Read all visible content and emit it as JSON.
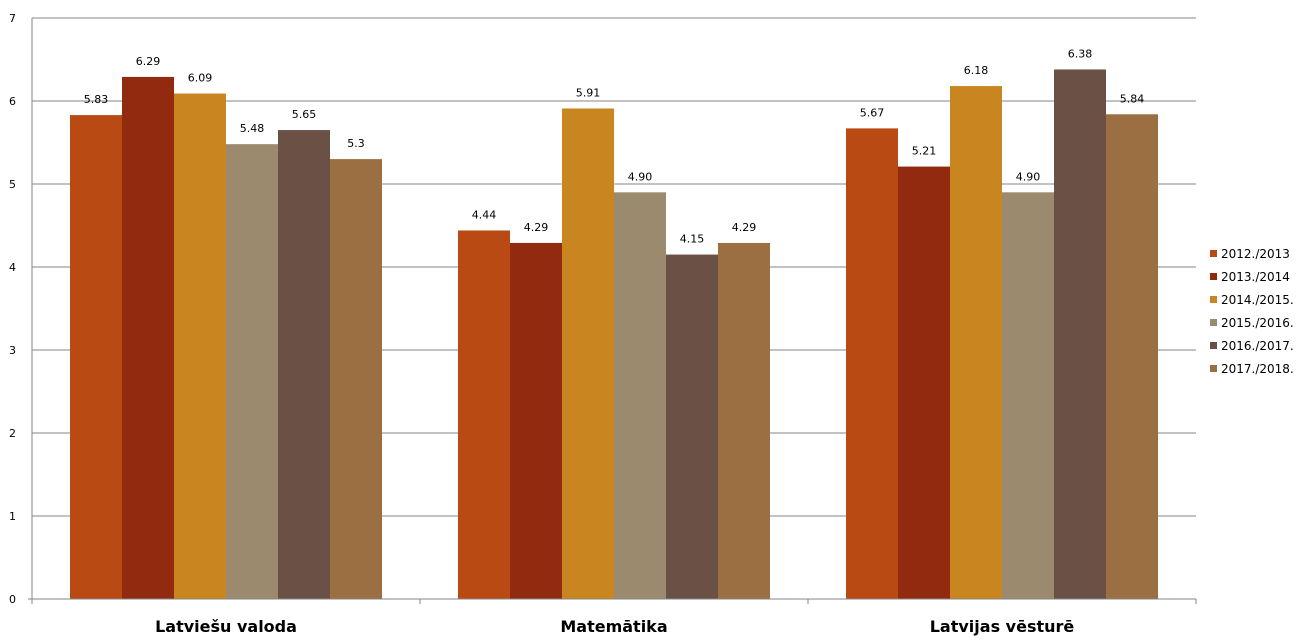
{
  "chart_data": {
    "type": "bar",
    "title": "",
    "xlabel": "",
    "ylabel": "",
    "categories": [
      "Latviešu valoda",
      "Matemātika",
      "Latvijas vēsturē"
    ],
    "ylim": [
      0,
      7
    ],
    "yticks": [
      0,
      1,
      2,
      3,
      4,
      5,
      6,
      7
    ],
    "grid": true,
    "legend_position": "right",
    "series": [
      {
        "name": "2012./2013",
        "color": "#B94A13",
        "values": [
          5.83,
          4.44,
          5.67
        ],
        "labels": [
          "5.83",
          "4.44",
          "5.67"
        ]
      },
      {
        "name": "2013./2014",
        "color": "#922A0F",
        "values": [
          6.29,
          4.29,
          5.21
        ],
        "labels": [
          "6.29",
          "4.29",
          "5.21"
        ]
      },
      {
        "name": "2014./2015.",
        "color": "#C98620",
        "values": [
          6.09,
          5.91,
          6.18
        ],
        "labels": [
          "6.09",
          "5.91",
          "6.18"
        ]
      },
      {
        "name": "2015./2016.",
        "color": "#9C8A6E",
        "values": [
          5.48,
          4.9,
          4.9
        ],
        "labels": [
          "5.48",
          "4.90",
          "4.90"
        ]
      },
      {
        "name": "2016./2017.",
        "color": "#6B5145",
        "values": [
          5.65,
          4.15,
          6.38
        ],
        "labels": [
          "5.65",
          "4.15",
          "6.38"
        ]
      },
      {
        "name": "2017./2018.",
        "color": "#9C6F42",
        "values": [
          5.3,
          4.29,
          5.84
        ],
        "labels": [
          "5.3",
          "4.29",
          "5.84"
        ]
      }
    ]
  }
}
